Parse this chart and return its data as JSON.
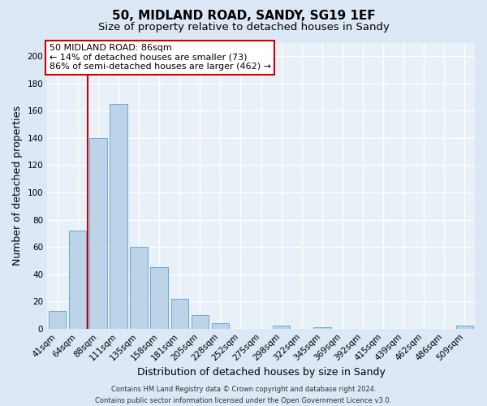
{
  "title": "50, MIDLAND ROAD, SANDY, SG19 1EF",
  "subtitle": "Size of property relative to detached houses in Sandy",
  "xlabel": "Distribution of detached houses by size in Sandy",
  "ylabel": "Number of detached properties",
  "bar_labels": [
    "41sqm",
    "64sqm",
    "88sqm",
    "111sqm",
    "135sqm",
    "158sqm",
    "181sqm",
    "205sqm",
    "228sqm",
    "252sqm",
    "275sqm",
    "298sqm",
    "322sqm",
    "345sqm",
    "369sqm",
    "392sqm",
    "415sqm",
    "439sqm",
    "462sqm",
    "486sqm",
    "509sqm"
  ],
  "bar_values": [
    13,
    72,
    140,
    165,
    60,
    45,
    22,
    10,
    4,
    0,
    0,
    2,
    0,
    1,
    0,
    0,
    0,
    0,
    0,
    0,
    2
  ],
  "bar_color": "#bdd4e8",
  "bar_edge_color": "#6aaad4",
  "highlight_idx": 2,
  "highlight_color": "#cc0000",
  "ylim": [
    0,
    210
  ],
  "yticks": [
    0,
    20,
    40,
    60,
    80,
    100,
    120,
    140,
    160,
    180,
    200
  ],
  "annotation_text": "50 MIDLAND ROAD: 86sqm\n← 14% of detached houses are smaller (73)\n86% of semi-detached houses are larger (462) →",
  "annotation_box_color": "#ffffff",
  "annotation_box_edge": "#cc0000",
  "footer_line1": "Contains HM Land Registry data © Crown copyright and database right 2024.",
  "footer_line2": "Contains public sector information licensed under the Open Government Licence v3.0.",
  "bg_color": "#dce8f5",
  "plot_bg_color": "#e8f0f8",
  "grid_color": "#ffffff",
  "title_fontsize": 11,
  "subtitle_fontsize": 9.5,
  "tick_fontsize": 7.5,
  "label_fontsize": 9,
  "annotation_fontsize": 8,
  "footer_fontsize": 6
}
